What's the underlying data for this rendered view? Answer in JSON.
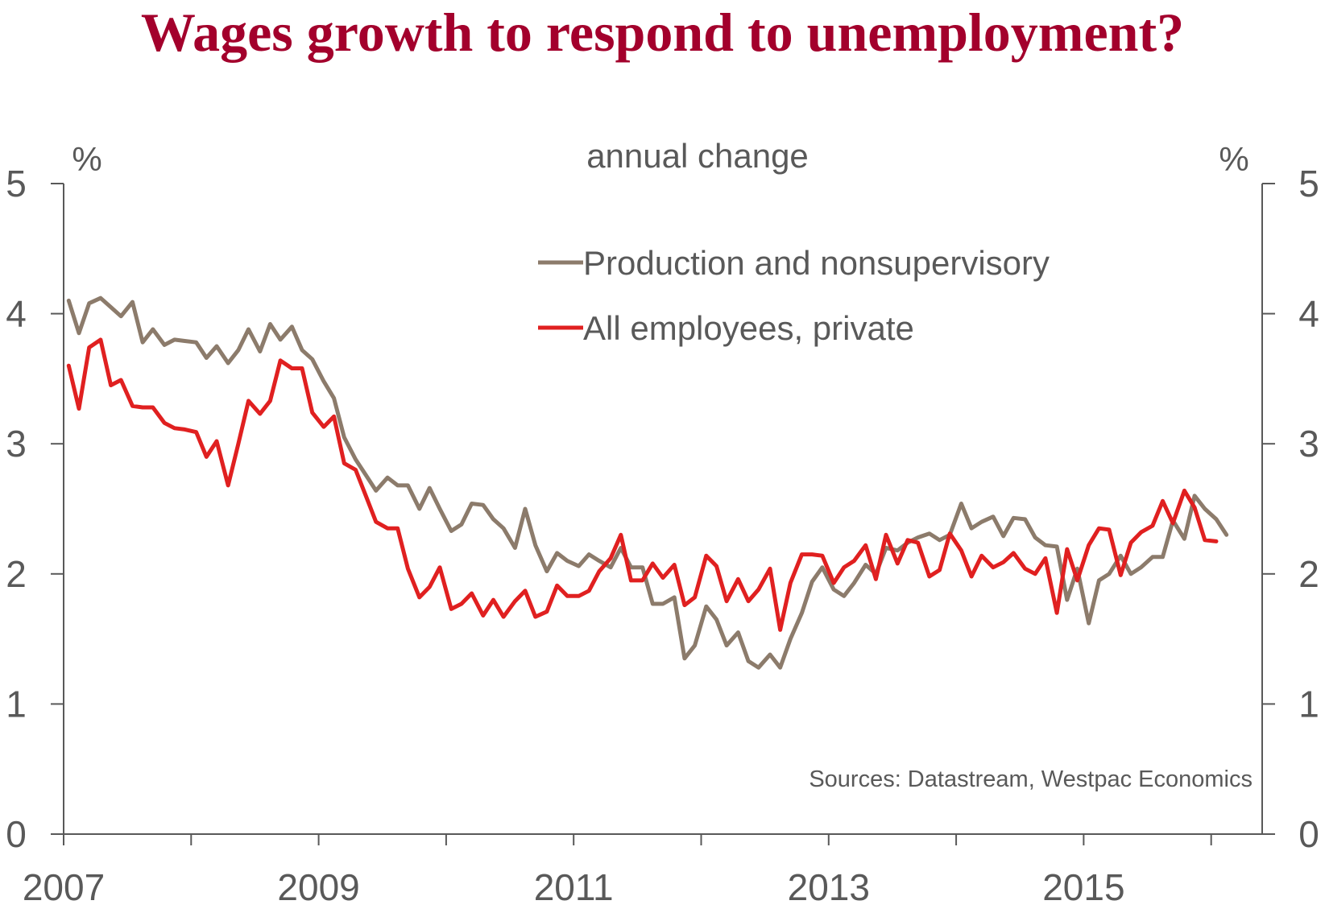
{
  "title": "Wages growth to respond to unemployment?",
  "colors": {
    "title": "#a3002c",
    "axis": "#595959",
    "production": "#8c7b6b",
    "all_private": "#e02020"
  },
  "chart_data": {
    "type": "line",
    "subtitle": "annual change",
    "ylabel_left": "%",
    "ylabel_right": "%",
    "ylim": [
      0,
      5
    ],
    "yticks": [
      0,
      1,
      2,
      3,
      4,
      5
    ],
    "xlim": [
      2007,
      2016.4
    ],
    "xticks_major": [
      2007,
      2009,
      2011,
      2013,
      2015
    ],
    "xticks_minor": [
      2008,
      2010,
      2012,
      2014,
      2016
    ],
    "source": "Sources: Datastream, Westpac Economics",
    "legend_position": "top-right",
    "series": [
      {
        "name": "Production and nonsupervisory",
        "color": "#8c7b6b",
        "points": [
          [
            2007.04,
            4.1
          ],
          [
            2007.12,
            3.85
          ],
          [
            2007.2,
            4.08
          ],
          [
            2007.29,
            4.12
          ],
          [
            2007.37,
            4.05
          ],
          [
            2007.45,
            3.98
          ],
          [
            2007.54,
            4.09
          ],
          [
            2007.62,
            3.78
          ],
          [
            2007.7,
            3.88
          ],
          [
            2007.79,
            3.76
          ],
          [
            2007.87,
            3.8
          ],
          [
            2007.95,
            3.79
          ],
          [
            2008.04,
            3.78
          ],
          [
            2008.12,
            3.66
          ],
          [
            2008.2,
            3.75
          ],
          [
            2008.29,
            3.62
          ],
          [
            2008.37,
            3.72
          ],
          [
            2008.45,
            3.88
          ],
          [
            2008.54,
            3.71
          ],
          [
            2008.62,
            3.92
          ],
          [
            2008.7,
            3.8
          ],
          [
            2008.79,
            3.9
          ],
          [
            2008.87,
            3.72
          ],
          [
            2008.95,
            3.65
          ],
          [
            2009.04,
            3.48
          ],
          [
            2009.12,
            3.35
          ],
          [
            2009.2,
            3.05
          ],
          [
            2009.29,
            2.88
          ],
          [
            2009.37,
            2.76
          ],
          [
            2009.45,
            2.64
          ],
          [
            2009.54,
            2.74
          ],
          [
            2009.62,
            2.68
          ],
          [
            2009.7,
            2.68
          ],
          [
            2009.79,
            2.5
          ],
          [
            2009.87,
            2.66
          ],
          [
            2009.95,
            2.5
          ],
          [
            2010.04,
            2.33
          ],
          [
            2010.12,
            2.38
          ],
          [
            2010.2,
            2.54
          ],
          [
            2010.29,
            2.53
          ],
          [
            2010.37,
            2.42
          ],
          [
            2010.45,
            2.35
          ],
          [
            2010.54,
            2.2
          ],
          [
            2010.62,
            2.5
          ],
          [
            2010.7,
            2.22
          ],
          [
            2010.79,
            2.02
          ],
          [
            2010.87,
            2.16
          ],
          [
            2010.95,
            2.1
          ],
          [
            2011.04,
            2.06
          ],
          [
            2011.12,
            2.15
          ],
          [
            2011.2,
            2.1
          ],
          [
            2011.29,
            2.05
          ],
          [
            2011.37,
            2.2
          ],
          [
            2011.45,
            2.05
          ],
          [
            2011.54,
            2.05
          ],
          [
            2011.62,
            1.77
          ],
          [
            2011.7,
            1.77
          ],
          [
            2011.79,
            1.82
          ],
          [
            2011.87,
            1.35
          ],
          [
            2011.95,
            1.45
          ],
          [
            2012.04,
            1.75
          ],
          [
            2012.12,
            1.65
          ],
          [
            2012.2,
            1.45
          ],
          [
            2012.29,
            1.55
          ],
          [
            2012.37,
            1.33
          ],
          [
            2012.45,
            1.28
          ],
          [
            2012.54,
            1.38
          ],
          [
            2012.62,
            1.28
          ],
          [
            2012.7,
            1.5
          ],
          [
            2012.79,
            1.7
          ],
          [
            2012.87,
            1.94
          ],
          [
            2012.95,
            2.05
          ],
          [
            2013.04,
            1.88
          ],
          [
            2013.12,
            1.83
          ],
          [
            2013.2,
            1.93
          ],
          [
            2013.29,
            2.07
          ],
          [
            2013.37,
            2.0
          ],
          [
            2013.45,
            2.2
          ],
          [
            2013.54,
            2.18
          ],
          [
            2013.62,
            2.24
          ],
          [
            2013.7,
            2.28
          ],
          [
            2013.79,
            2.31
          ],
          [
            2013.87,
            2.26
          ],
          [
            2013.95,
            2.3
          ],
          [
            2014.04,
            2.54
          ],
          [
            2014.12,
            2.35
          ],
          [
            2014.2,
            2.4
          ],
          [
            2014.29,
            2.44
          ],
          [
            2014.37,
            2.29
          ],
          [
            2014.45,
            2.43
          ],
          [
            2014.54,
            2.42
          ],
          [
            2014.62,
            2.28
          ],
          [
            2014.7,
            2.22
          ],
          [
            2014.79,
            2.21
          ],
          [
            2014.87,
            1.8
          ],
          [
            2014.95,
            2.04
          ],
          [
            2015.04,
            1.62
          ],
          [
            2015.12,
            1.95
          ],
          [
            2015.2,
            2.0
          ],
          [
            2015.29,
            2.14
          ],
          [
            2015.37,
            2.0
          ],
          [
            2015.45,
            2.05
          ],
          [
            2015.54,
            2.13
          ],
          [
            2015.62,
            2.13
          ],
          [
            2015.7,
            2.41
          ],
          [
            2015.79,
            2.27
          ],
          [
            2015.87,
            2.6
          ],
          [
            2015.95,
            2.5
          ],
          [
            2016.04,
            2.42
          ],
          [
            2016.12,
            2.3
          ]
        ]
      },
      {
        "name": "All employees, private",
        "color": "#e02020",
        "points": [
          [
            2007.04,
            3.6
          ],
          [
            2007.12,
            3.27
          ],
          [
            2007.2,
            3.74
          ],
          [
            2007.29,
            3.8
          ],
          [
            2007.37,
            3.45
          ],
          [
            2007.45,
            3.49
          ],
          [
            2007.54,
            3.29
          ],
          [
            2007.62,
            3.28
          ],
          [
            2007.7,
            3.28
          ],
          [
            2007.79,
            3.16
          ],
          [
            2007.87,
            3.12
          ],
          [
            2007.95,
            3.11
          ],
          [
            2008.04,
            3.09
          ],
          [
            2008.12,
            2.9
          ],
          [
            2008.2,
            3.02
          ],
          [
            2008.29,
            2.68
          ],
          [
            2008.37,
            3.0
          ],
          [
            2008.45,
            3.33
          ],
          [
            2008.54,
            3.23
          ],
          [
            2008.62,
            3.33
          ],
          [
            2008.7,
            3.64
          ],
          [
            2008.79,
            3.58
          ],
          [
            2008.87,
            3.58
          ],
          [
            2008.95,
            3.24
          ],
          [
            2009.04,
            3.13
          ],
          [
            2009.12,
            3.21
          ],
          [
            2009.2,
            2.85
          ],
          [
            2009.29,
            2.8
          ],
          [
            2009.37,
            2.6
          ],
          [
            2009.45,
            2.4
          ],
          [
            2009.54,
            2.35
          ],
          [
            2009.62,
            2.35
          ],
          [
            2009.7,
            2.04
          ],
          [
            2009.79,
            1.82
          ],
          [
            2009.87,
            1.9
          ],
          [
            2009.95,
            2.05
          ],
          [
            2010.04,
            1.73
          ],
          [
            2010.12,
            1.77
          ],
          [
            2010.2,
            1.85
          ],
          [
            2010.29,
            1.68
          ],
          [
            2010.37,
            1.8
          ],
          [
            2010.45,
            1.67
          ],
          [
            2010.54,
            1.79
          ],
          [
            2010.62,
            1.87
          ],
          [
            2010.7,
            1.67
          ],
          [
            2010.79,
            1.71
          ],
          [
            2010.87,
            1.91
          ],
          [
            2010.95,
            1.83
          ],
          [
            2011.04,
            1.83
          ],
          [
            2011.12,
            1.87
          ],
          [
            2011.2,
            2.02
          ],
          [
            2011.29,
            2.12
          ],
          [
            2011.37,
            2.3
          ],
          [
            2011.45,
            1.95
          ],
          [
            2011.54,
            1.95
          ],
          [
            2011.62,
            2.08
          ],
          [
            2011.7,
            1.97
          ],
          [
            2011.79,
            2.07
          ],
          [
            2011.87,
            1.76
          ],
          [
            2011.95,
            1.82
          ],
          [
            2012.04,
            2.14
          ],
          [
            2012.12,
            2.06
          ],
          [
            2012.2,
            1.79
          ],
          [
            2012.29,
            1.96
          ],
          [
            2012.37,
            1.79
          ],
          [
            2012.45,
            1.88
          ],
          [
            2012.54,
            2.04
          ],
          [
            2012.62,
            1.57
          ],
          [
            2012.7,
            1.93
          ],
          [
            2012.79,
            2.15
          ],
          [
            2012.87,
            2.15
          ],
          [
            2012.95,
            2.14
          ],
          [
            2013.04,
            1.93
          ],
          [
            2013.12,
            2.05
          ],
          [
            2013.2,
            2.1
          ],
          [
            2013.29,
            2.22
          ],
          [
            2013.37,
            1.96
          ],
          [
            2013.45,
            2.3
          ],
          [
            2013.54,
            2.08
          ],
          [
            2013.62,
            2.26
          ],
          [
            2013.7,
            2.24
          ],
          [
            2013.79,
            1.98
          ],
          [
            2013.87,
            2.03
          ],
          [
            2013.95,
            2.31
          ],
          [
            2014.04,
            2.18
          ],
          [
            2014.12,
            1.98
          ],
          [
            2014.2,
            2.14
          ],
          [
            2014.29,
            2.05
          ],
          [
            2014.37,
            2.09
          ],
          [
            2014.45,
            2.16
          ],
          [
            2014.54,
            2.04
          ],
          [
            2014.62,
            2.0
          ],
          [
            2014.7,
            2.12
          ],
          [
            2014.79,
            1.7
          ],
          [
            2014.87,
            2.19
          ],
          [
            2014.95,
            1.95
          ],
          [
            2015.04,
            2.22
          ],
          [
            2015.12,
            2.35
          ],
          [
            2015.2,
            2.34
          ],
          [
            2015.29,
            1.99
          ],
          [
            2015.37,
            2.24
          ],
          [
            2015.45,
            2.32
          ],
          [
            2015.54,
            2.37
          ],
          [
            2015.62,
            2.56
          ],
          [
            2015.7,
            2.39
          ],
          [
            2015.79,
            2.64
          ],
          [
            2015.87,
            2.51
          ],
          [
            2015.95,
            2.26
          ],
          [
            2016.04,
            2.25
          ]
        ]
      }
    ]
  }
}
